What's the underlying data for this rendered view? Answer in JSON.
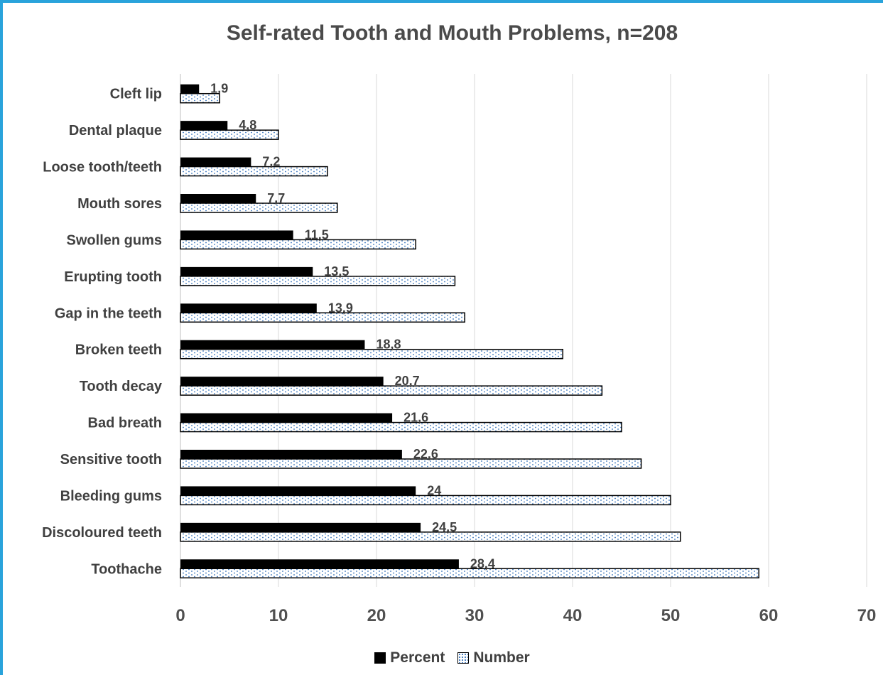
{
  "chart_data": {
    "type": "bar",
    "orientation": "horizontal",
    "title": "Self-rated Tooth and Mouth Problems, n=208",
    "categories": [
      "Cleft lip",
      "Dental plaque",
      "Loose tooth/teeth",
      "Mouth sores",
      "Swollen gums",
      "Erupting tooth",
      "Gap in the teeth",
      "Broken teeth",
      "Tooth decay",
      "Bad breath",
      "Sensitive tooth",
      "Bleeding gums",
      "Discoloured teeth",
      "Toothache"
    ],
    "series": [
      {
        "name": "Percent",
        "values": [
          1.9,
          4.8,
          7.2,
          7.7,
          11.5,
          13.5,
          13.9,
          18.8,
          20.7,
          21.6,
          22.6,
          24,
          24.5,
          28.4
        ],
        "data_labels": [
          "1,9",
          "4,8",
          "7,2",
          "7,7",
          "11,5",
          "13,5",
          "13,9",
          "18,8",
          "20,7",
          "21,6",
          "22,6",
          "24",
          "24,5",
          "28,4"
        ],
        "color": "#000000"
      },
      {
        "name": "Number",
        "values": [
          4,
          10,
          15,
          16,
          24,
          28,
          29,
          39,
          43,
          45,
          47,
          50,
          51,
          59
        ],
        "color": "#2e6db8",
        "pattern": "dotted"
      }
    ],
    "xlim": [
      0,
      70
    ],
    "xticks": [
      0,
      10,
      20,
      30,
      40,
      50,
      60,
      70
    ],
    "xlabel": "",
    "ylabel": "",
    "grid": "vertical",
    "legend_position": "bottom"
  },
  "colors": {
    "frame_border": "#29a3db",
    "gridline": "#d9d9d9",
    "text": "#404040"
  }
}
